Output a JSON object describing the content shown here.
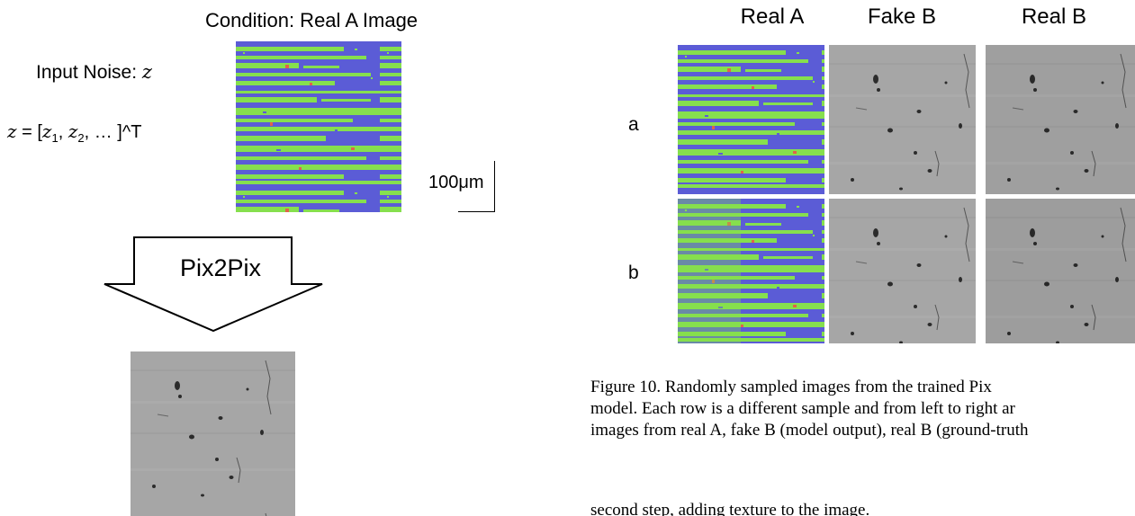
{
  "left_panel": {
    "condition_title": "Condition: Real A Image",
    "noise_label": "Input Noise:",
    "noise_var": "z",
    "formula": {
      "lhs": "z",
      "eq": " = [",
      "z1": "z",
      "sub1": "1",
      "comma1": ", ",
      "z2": "z",
      "sub2": "2",
      "tail": ", … ]^T"
    },
    "scale_label": "100μm",
    "arrow_label": "Pix2Pix"
  },
  "right_panel": {
    "columns": [
      "Real A",
      "Fake B",
      "Real B"
    ],
    "rows": [
      "a",
      "b"
    ],
    "caption_lines": [
      "Figure 10.  Randomly sampled images from the trained Pix",
      "model. Each row is a different sample and from left to right ar",
      "images from real A, fake B (model output), real B (ground-truth"
    ],
    "body_text": "second step, adding texture to the image."
  },
  "colors": {
    "phase_blue": "#5b5cd6",
    "phase_green": "#86df4e",
    "phase_red": "#e0634a",
    "micro_gray": "#a3a3a3",
    "micro_gray_dark": "#979797",
    "particle": "#2b2b2b"
  }
}
